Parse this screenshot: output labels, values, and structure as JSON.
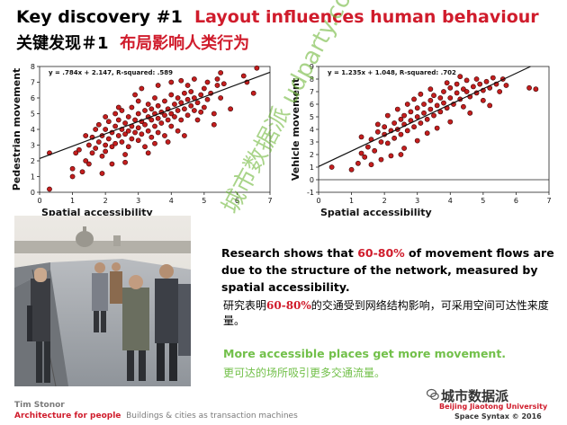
{
  "slide": {
    "title_en_prefix": "Key discovery #1",
    "title_en_highlight": "Layout influences human behaviour",
    "title_zh_prefix": "关键发现＃1",
    "title_zh_highlight": "布局影响人类行为"
  },
  "chart_data": [
    {
      "type": "scatter",
      "equation": "y = .784x + 2.147, R-squared: .589",
      "xlabel": "Spatial accessibility",
      "ylabel": "Pedestrian movement",
      "xlim": [
        0,
        7
      ],
      "ylim": [
        0,
        8
      ],
      "xticks": [
        "0",
        "1",
        "2",
        "3",
        "4",
        "5",
        "6",
        "7"
      ],
      "yticks": [
        "0",
        "1",
        "2",
        "3",
        "4",
        "5",
        "6",
        "7",
        "8"
      ],
      "trend": {
        "slope": 0.784,
        "intercept": 2.147
      },
      "marker_color": "#c41e1e",
      "points": [
        [
          0.3,
          0.2
        ],
        [
          0.3,
          2.5
        ],
        [
          1.0,
          1.5
        ],
        [
          1.0,
          1.0
        ],
        [
          1.1,
          2.5
        ],
        [
          1.2,
          2.7
        ],
        [
          1.3,
          1.3
        ],
        [
          1.4,
          2.0
        ],
        [
          1.5,
          3.0
        ],
        [
          1.5,
          1.8
        ],
        [
          1.6,
          2.5
        ],
        [
          1.6,
          3.5
        ],
        [
          1.7,
          4.0
        ],
        [
          1.7,
          2.8
        ],
        [
          1.8,
          3.2
        ],
        [
          1.8,
          4.3
        ],
        [
          1.9,
          3.6
        ],
        [
          1.9,
          2.3
        ],
        [
          2.0,
          4.0
        ],
        [
          2.0,
          3.0
        ],
        [
          2.0,
          2.6
        ],
        [
          2.1,
          4.5
        ],
        [
          2.1,
          3.4
        ],
        [
          2.2,
          3.8
        ],
        [
          2.2,
          2.9
        ],
        [
          2.3,
          4.2
        ],
        [
          2.3,
          5.0
        ],
        [
          2.3,
          3.1
        ],
        [
          2.4,
          3.6
        ],
        [
          2.4,
          4.6
        ],
        [
          2.5,
          4.0
        ],
        [
          2.5,
          3.2
        ],
        [
          2.5,
          5.2
        ],
        [
          2.6,
          4.4
        ],
        [
          2.6,
          3.7
        ],
        [
          2.6,
          2.4
        ],
        [
          2.7,
          4.8
        ],
        [
          2.7,
          3.9
        ],
        [
          2.8,
          4.2
        ],
        [
          2.8,
          5.4
        ],
        [
          2.8,
          3.4
        ],
        [
          2.9,
          4.6
        ],
        [
          2.9,
          3.8
        ],
        [
          3.0,
          5.0
        ],
        [
          3.0,
          4.1
        ],
        [
          3.0,
          3.3
        ],
        [
          3.0,
          5.8
        ],
        [
          3.1,
          4.5
        ],
        [
          3.1,
          3.7
        ],
        [
          3.2,
          5.2
        ],
        [
          3.2,
          4.3
        ],
        [
          3.2,
          2.9
        ],
        [
          3.3,
          4.8
        ],
        [
          3.3,
          5.6
        ],
        [
          3.3,
          3.9
        ],
        [
          3.4,
          4.6
        ],
        [
          3.4,
          5.3
        ],
        [
          3.4,
          3.5
        ],
        [
          3.5,
          5.0
        ],
        [
          3.5,
          4.2
        ],
        [
          3.5,
          6.0
        ],
        [
          3.6,
          4.7
        ],
        [
          3.6,
          5.5
        ],
        [
          3.6,
          3.8
        ],
        [
          3.7,
          5.1
        ],
        [
          3.7,
          4.4
        ],
        [
          3.8,
          5.8
        ],
        [
          3.8,
          4.9
        ],
        [
          3.8,
          3.6
        ],
        [
          3.9,
          5.3
        ],
        [
          3.9,
          4.6
        ],
        [
          4.0,
          6.2
        ],
        [
          4.0,
          5.0
        ],
        [
          4.0,
          4.2
        ],
        [
          4.1,
          5.6
        ],
        [
          4.1,
          4.8
        ],
        [
          4.2,
          6.0
        ],
        [
          4.2,
          5.2
        ],
        [
          4.2,
          3.9
        ],
        [
          4.3,
          5.7
        ],
        [
          4.3,
          4.6
        ],
        [
          4.4,
          6.3
        ],
        [
          4.4,
          5.3
        ],
        [
          4.5,
          5.9
        ],
        [
          4.5,
          4.9
        ],
        [
          4.5,
          6.8
        ],
        [
          4.6,
          5.5
        ],
        [
          4.6,
          6.4
        ],
        [
          4.7,
          5.2
        ],
        [
          4.7,
          6.0
        ],
        [
          4.8,
          5.7
        ],
        [
          4.8,
          4.6
        ],
        [
          4.9,
          6.2
        ],
        [
          5.0,
          5.4
        ],
        [
          5.0,
          6.6
        ],
        [
          5.1,
          5.9
        ],
        [
          5.2,
          6.3
        ],
        [
          5.3,
          5.0
        ],
        [
          5.4,
          6.8
        ],
        [
          5.4,
          7.2
        ],
        [
          5.5,
          6.0
        ],
        [
          5.5,
          7.6
        ],
        [
          5.6,
          6.9
        ],
        [
          5.8,
          5.3
        ],
        [
          6.2,
          7.4
        ],
        [
          6.3,
          7.0
        ],
        [
          6.5,
          6.3
        ],
        [
          6.6,
          7.9
        ],
        [
          1.4,
          3.6
        ],
        [
          2.0,
          4.8
        ],
        [
          2.4,
          5.4
        ],
        [
          2.9,
          6.2
        ],
        [
          3.1,
          6.6
        ],
        [
          3.6,
          6.8
        ],
        [
          4.0,
          7.0
        ],
        [
          4.3,
          7.1
        ],
        [
          4.7,
          7.2
        ],
        [
          5.1,
          7.0
        ],
        [
          2.6,
          1.9
        ],
        [
          3.3,
          2.5
        ],
        [
          3.9,
          3.2
        ],
        [
          4.4,
          3.6
        ],
        [
          5.3,
          4.3
        ],
        [
          1.9,
          1.2
        ],
        [
          2.2,
          1.8
        ],
        [
          2.7,
          2.9
        ],
        [
          3.5,
          3.1
        ],
        [
          4.9,
          5.1
        ]
      ]
    },
    {
      "type": "scatter",
      "equation": "y = 1.235x + 1.048, R-squared: .702",
      "xlabel": "Spatial accessibility",
      "ylabel": "Vehicle movement",
      "xlim": [
        0,
        7
      ],
      "ylim": [
        -1,
        9
      ],
      "xticks": [
        "0",
        "1",
        "2",
        "3",
        "4",
        "5",
        "6",
        "7"
      ],
      "yticks": [
        "-1",
        "0",
        "1",
        "2",
        "3",
        "4",
        "5",
        "6",
        "7",
        "8",
        "9"
      ],
      "trend": {
        "slope": 1.235,
        "intercept": 1.048
      },
      "marker_color": "#c41e1e",
      "points": [
        [
          0.4,
          1.0
        ],
        [
          1.0,
          0.8
        ],
        [
          1.2,
          1.3
        ],
        [
          1.3,
          2.1
        ],
        [
          1.4,
          1.8
        ],
        [
          1.5,
          2.6
        ],
        [
          1.6,
          3.2
        ],
        [
          1.7,
          2.3
        ],
        [
          1.8,
          3.8
        ],
        [
          1.9,
          3.0
        ],
        [
          2.0,
          3.6
        ],
        [
          2.0,
          4.2
        ],
        [
          2.1,
          2.9
        ],
        [
          2.2,
          3.9
        ],
        [
          2.3,
          4.5
        ],
        [
          2.3,
          3.3
        ],
        [
          2.4,
          4.0
        ],
        [
          2.5,
          4.8
        ],
        [
          2.5,
          3.6
        ],
        [
          2.6,
          4.4
        ],
        [
          2.6,
          5.1
        ],
        [
          2.7,
          3.9
        ],
        [
          2.8,
          4.7
        ],
        [
          2.8,
          5.4
        ],
        [
          2.9,
          4.2
        ],
        [
          3.0,
          5.0
        ],
        [
          3.0,
          5.7
        ],
        [
          3.1,
          4.5
        ],
        [
          3.2,
          5.3
        ],
        [
          3.2,
          6.0
        ],
        [
          3.3,
          4.8
        ],
        [
          3.4,
          5.6
        ],
        [
          3.4,
          6.3
        ],
        [
          3.5,
          5.1
        ],
        [
          3.5,
          6.7
        ],
        [
          3.6,
          5.9
        ],
        [
          3.7,
          5.4
        ],
        [
          3.7,
          6.5
        ],
        [
          3.8,
          6.1
        ],
        [
          3.8,
          7.0
        ],
        [
          3.9,
          5.7
        ],
        [
          4.0,
          6.5
        ],
        [
          4.0,
          7.3
        ],
        [
          4.1,
          6.0
        ],
        [
          4.2,
          6.9
        ],
        [
          4.2,
          7.6
        ],
        [
          4.3,
          6.4
        ],
        [
          4.4,
          7.2
        ],
        [
          4.4,
          5.8
        ],
        [
          4.5,
          7.0
        ],
        [
          4.5,
          7.9
        ],
        [
          4.6,
          6.6
        ],
        [
          4.7,
          7.4
        ],
        [
          4.8,
          6.9
        ],
        [
          4.8,
          8.0
        ],
        [
          4.9,
          7.6
        ],
        [
          5.0,
          7.1
        ],
        [
          5.0,
          6.3
        ],
        [
          5.1,
          7.8
        ],
        [
          5.2,
          7.3
        ],
        [
          5.3,
          8.1
        ],
        [
          5.4,
          7.6
        ],
        [
          5.5,
          7.0
        ],
        [
          5.6,
          8.0
        ],
        [
          5.7,
          7.5
        ],
        [
          6.4,
          7.3
        ],
        [
          6.6,
          7.2
        ],
        [
          1.6,
          1.2
        ],
        [
          2.2,
          1.9
        ],
        [
          2.6,
          2.5
        ],
        [
          3.0,
          3.1
        ],
        [
          3.3,
          3.7
        ],
        [
          3.6,
          4.1
        ],
        [
          2.1,
          5.1
        ],
        [
          2.4,
          5.6
        ],
        [
          2.9,
          6.4
        ],
        [
          3.4,
          7.2
        ],
        [
          4.0,
          4.6
        ],
        [
          4.6,
          5.3
        ],
        [
          5.2,
          5.9
        ],
        [
          1.9,
          1.6
        ],
        [
          2.7,
          6.0
        ],
        [
          3.1,
          6.8
        ],
        [
          3.9,
          7.7
        ],
        [
          4.3,
          8.2
        ],
        [
          1.3,
          3.4
        ],
        [
          1.8,
          4.4
        ],
        [
          2.5,
          2.0
        ]
      ]
    }
  ],
  "text": {
    "body_en_1": "Research shows that ",
    "body_en_hl": "60-80%",
    "body_en_2": " of movement flows are due to the structure of the network, measured by spatial accessibility.",
    "body_zh_1": "研究表明",
    "body_zh_hl": "60-80%",
    "body_zh_2": "的交通受到网络结构影响，可采用空间可达性来度量。",
    "green_en": "More accessible places get more movement.",
    "green_zh": "更可达的场所吸引更多交通流量。"
  },
  "footer": {
    "author": "Tim Stonor",
    "brand": "Architecture for people",
    "subtitle": "Buildings & cities as transaction machines",
    "watermark_name": "城市数据派",
    "university": "Beijing Jiaotong University",
    "copyright": "Space Syntax © 2016",
    "diagonal_watermark": "城市数据派 udparty.com"
  },
  "colors": {
    "accent": "#d01c2c",
    "green": "#72c04a"
  }
}
